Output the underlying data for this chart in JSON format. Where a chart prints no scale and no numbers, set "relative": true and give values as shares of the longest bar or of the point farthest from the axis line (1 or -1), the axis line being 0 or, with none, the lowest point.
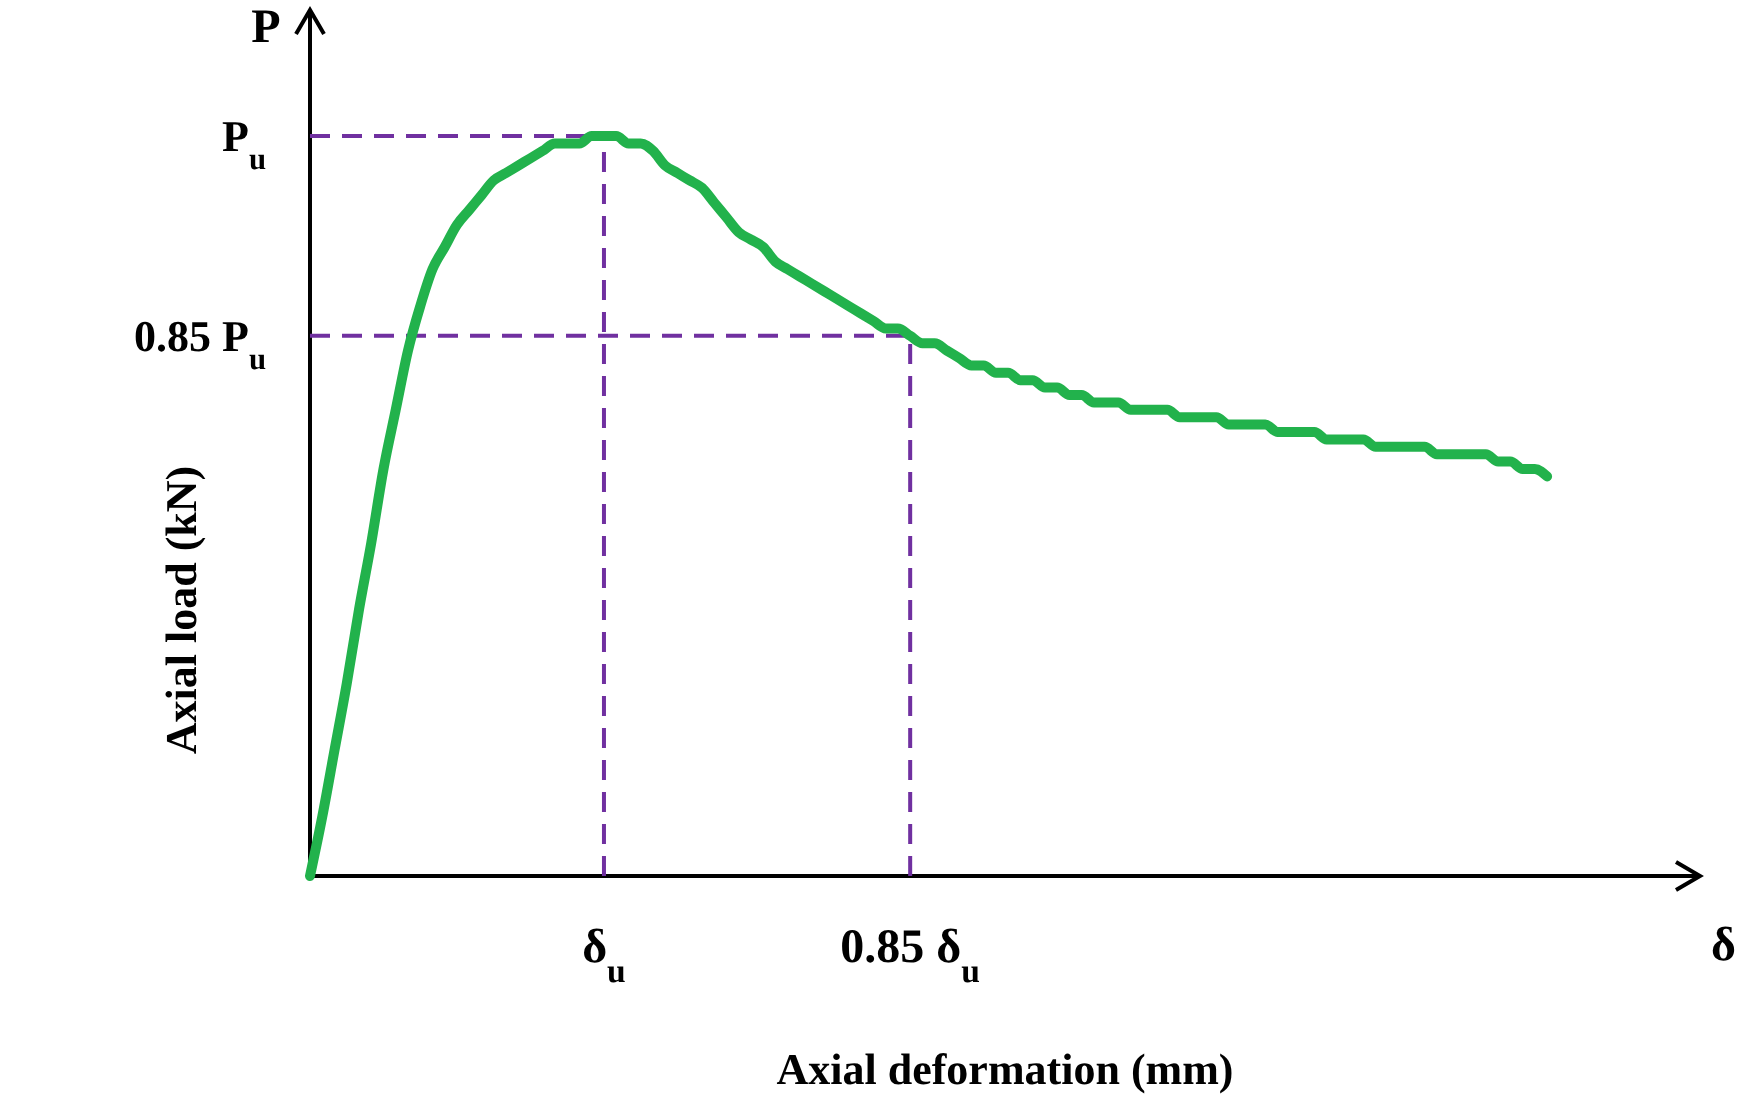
{
  "chart_data": {
    "type": "line",
    "relative": true,
    "xlabel": "Axial deformation (mm)",
    "ylabel": "Axial load (kN)",
    "categories": [
      null,
      null,
      null,
      null,
      null,
      null,
      null,
      null,
      null,
      null,
      null,
      null,
      null,
      null,
      null,
      null,
      null,
      null,
      null,
      null,
      null,
      null,
      null,
      null,
      "δ$_{u}$",
      null,
      null,
      null,
      null,
      null,
      null,
      null,
      null,
      null,
      null,
      null,
      null,
      null,
      null,
      null,
      null,
      null,
      null,
      null,
      null,
      null,
      null,
      null,
      null,
      "0.85 δ$_{u}$",
      null,
      null,
      null,
      null,
      null,
      null,
      null,
      null,
      null,
      null,
      null,
      null,
      null,
      null,
      null,
      null,
      null,
      null,
      null,
      null,
      null,
      null,
      null,
      null,
      null,
      null,
      null,
      null,
      null,
      null,
      null,
      null,
      null,
      null,
      null,
      null,
      null,
      null,
      null,
      null,
      null,
      null,
      null,
      null,
      null,
      null,
      null,
      null,
      null,
      null,
      null,
      null
    ],
    "series": [
      {
        "color": "#22b24c",
        "values": [
          0,
          0.08,
          0.17,
          0.26,
          0.36,
          0.45,
          0.55,
          0.63,
          0.71,
          0.77,
          0.82,
          0.85,
          0.88,
          0.9,
          0.92,
          0.94,
          0.95,
          0.96,
          0.97,
          0.98,
          0.99,
          0.99,
          0.99,
          1,
          1,
          1,
          0.99,
          0.99,
          0.98,
          0.96,
          0.95,
          0.94,
          0.93,
          0.91,
          0.89,
          0.87,
          0.86,
          0.85,
          0.83,
          0.82,
          0.81,
          0.8,
          0.79,
          0.78,
          0.77,
          0.76,
          0.75,
          0.74,
          0.74,
          0.73,
          0.72,
          0.72,
          0.71,
          0.7,
          0.69,
          0.69,
          0.68,
          0.68,
          0.67,
          0.67,
          0.66,
          0.66,
          0.65,
          0.65,
          0.64,
          0.64,
          0.64,
          0.63,
          0.63,
          0.63,
          0.63,
          0.62,
          0.62,
          0.62,
          0.62,
          0.61,
          0.61,
          0.61,
          0.61,
          0.6,
          0.6,
          0.6,
          0.6,
          0.59,
          0.59,
          0.59,
          0.59,
          0.58,
          0.58,
          0.58,
          0.58,
          0.58,
          0.57,
          0.57,
          0.57,
          0.57,
          0.57,
          0.56,
          0.56,
          0.55,
          0.55,
          0.54
        ]
      }
    ],
    "ref_lines": [
      {
        "axis": "y",
        "value": 1,
        "label": "P$_{u}$",
        "color": "#7030a0",
        "line_style": "dashed"
      },
      {
        "axis": "y",
        "value": 0.73,
        "label": "0.85 P$_{u}$",
        "color": "#7030a0",
        "line_style": "dashed"
      },
      {
        "axis": "x",
        "value": "δ$_{u}$",
        "color": "#7030a0",
        "line_style": "dashed"
      },
      {
        "axis": "x",
        "value": "0.85 δ$_{u}$",
        "color": "#7030a0",
        "line_style": "dashed"
      }
    ],
    "annotations": [
      "P",
      "δ"
    ],
    "marker": "none",
    "line_style": "solid"
  }
}
